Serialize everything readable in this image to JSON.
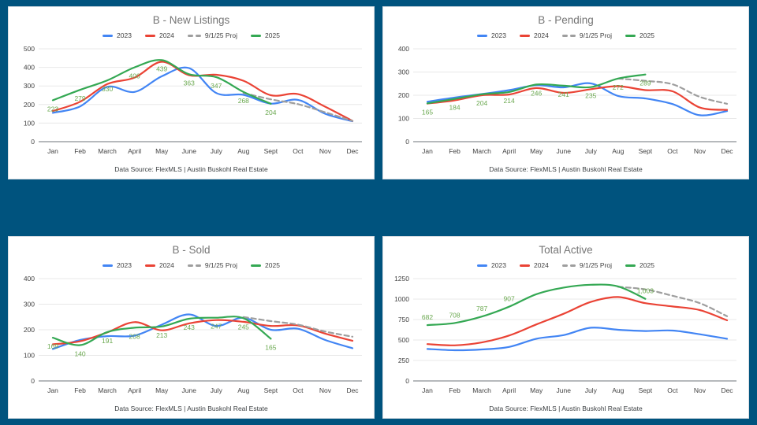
{
  "page": {
    "background_color": "#00537E",
    "card_color": "#FFFFFF",
    "title_color": "#757575",
    "axis_text_color": "#424242",
    "grid_color": "#E8E8E8",
    "data_label_color": "#6AA84F"
  },
  "footer_text": "Data Source: FlexMLS | Austin Buskohl Real Estate",
  "legend": [
    {
      "label": "2023",
      "color": "#4285F4",
      "style": "solid"
    },
    {
      "label": "2024",
      "color": "#EA4335",
      "style": "solid"
    },
    {
      "label": "9/1/25 Proj",
      "color": "#9E9E9E",
      "style": "dashed"
    },
    {
      "label": "2025",
      "color": "#34A853",
      "style": "solid"
    }
  ],
  "chart_data": [
    {
      "type": "line",
      "title": "B - New Listings",
      "ylim": [
        0,
        500
      ],
      "yticks": [
        0,
        100,
        200,
        300,
        400,
        500
      ],
      "grid": true,
      "legend_position": "top",
      "categories": [
        "Jan",
        "Feb",
        "March",
        "April",
        "May",
        "June",
        "July",
        "Aug",
        "Sept",
        "Oct",
        "Nov",
        "Dec"
      ],
      "series": [
        {
          "name": "2023",
          "color": "#4285F4",
          "dash": false,
          "values": [
            155,
            190,
            295,
            268,
            352,
            396,
            262,
            252,
            205,
            225,
            150,
            110
          ]
        },
        {
          "name": "2024",
          "color": "#EA4335",
          "dash": false,
          "values": [
            165,
            215,
            310,
            345,
            430,
            358,
            360,
            328,
            250,
            256,
            188,
            112
          ]
        },
        {
          "name": "9/1/25 Proj",
          "color": "#9E9E9E",
          "dash": true,
          "values": [
            null,
            null,
            null,
            null,
            null,
            null,
            null,
            262,
            228,
            202,
            158,
            112
          ]
        },
        {
          "name": "2025",
          "color": "#34A853",
          "dash": false,
          "values": [
            223,
            279,
            330,
            400,
            439,
            363,
            347,
            268,
            204,
            null,
            null,
            null
          ],
          "point_labels": [
            "223",
            "279",
            "330",
            "400",
            "439",
            "363",
            "347",
            "268",
            "204",
            null,
            null,
            null
          ],
          "label_side": "below"
        }
      ]
    },
    {
      "type": "line",
      "title": "B - Pending",
      "ylim": [
        0,
        400
      ],
      "yticks": [
        0,
        100,
        200,
        300,
        400
      ],
      "grid": true,
      "legend_position": "top",
      "categories": [
        "Jan",
        "Feb",
        "March",
        "April",
        "May",
        "June",
        "July",
        "Aug",
        "Sept",
        "Oct",
        "Nov",
        "Dec"
      ],
      "series": [
        {
          "name": "2023",
          "color": "#4285F4",
          "dash": false,
          "values": [
            172,
            190,
            205,
            222,
            243,
            234,
            251,
            197,
            186,
            162,
            114,
            132
          ]
        },
        {
          "name": "2024",
          "color": "#EA4335",
          "dash": false,
          "values": [
            164,
            178,
            200,
            203,
            231,
            210,
            226,
            239,
            222,
            217,
            147,
            137
          ]
        },
        {
          "name": "9/1/25 Proj",
          "color": "#9E9E9E",
          "dash": true,
          "values": [
            null,
            null,
            null,
            null,
            null,
            null,
            null,
            272,
            262,
            247,
            193,
            163
          ]
        },
        {
          "name": "2025",
          "color": "#34A853",
          "dash": false,
          "values": [
            165,
            184,
            204,
            214,
            246,
            241,
            235,
            272,
            289,
            null,
            null,
            null
          ],
          "point_labels": [
            "165",
            "184",
            "204",
            "214",
            "246",
            "241",
            "235",
            "272",
            "289",
            null,
            null,
            null
          ],
          "label_side": "below"
        }
      ]
    },
    {
      "type": "line",
      "title": "B - Sold",
      "ylim": [
        0,
        400
      ],
      "yticks": [
        0,
        100,
        200,
        300,
        400
      ],
      "grid": true,
      "legend_position": "top",
      "categories": [
        "Jan",
        "Feb",
        "March",
        "April",
        "May",
        "June",
        "July",
        "Aug",
        "Sept",
        "Oct",
        "Nov",
        "Dec"
      ],
      "series": [
        {
          "name": "2023",
          "color": "#4285F4",
          "dash": false,
          "values": [
            125,
            160,
            175,
            177,
            220,
            260,
            215,
            247,
            200,
            204,
            160,
            128
          ]
        },
        {
          "name": "2024",
          "color": "#EA4335",
          "dash": false,
          "values": [
            143,
            155,
            190,
            230,
            198,
            225,
            238,
            231,
            215,
            217,
            185,
            157
          ]
        },
        {
          "name": "9/1/25 Proj",
          "color": "#9E9E9E",
          "dash": true,
          "values": [
            null,
            null,
            null,
            null,
            null,
            null,
            null,
            250,
            234,
            220,
            193,
            173
          ]
        },
        {
          "name": "2025",
          "color": "#34A853",
          "dash": false,
          "values": [
            169,
            140,
            191,
            208,
            213,
            243,
            247,
            245,
            165,
            null,
            null,
            null
          ],
          "point_labels": [
            "169",
            "140",
            "191",
            "208",
            "213",
            "243",
            "247",
            "245",
            "165",
            null,
            null,
            null
          ],
          "label_side": "below"
        }
      ]
    },
    {
      "type": "line",
      "title": "Total Active",
      "ylim": [
        0,
        1250
      ],
      "yticks": [
        0,
        250,
        500,
        750,
        1000,
        1250
      ],
      "grid": true,
      "legend_position": "top",
      "categories": [
        "Jan",
        "Feb",
        "March",
        "April",
        "May",
        "June",
        "July",
        "Aug",
        "Sept",
        "Oct",
        "Nov",
        "Dec"
      ],
      "series": [
        {
          "name": "2023",
          "color": "#4285F4",
          "dash": false,
          "values": [
            390,
            375,
            385,
            415,
            515,
            560,
            650,
            625,
            610,
            615,
            570,
            515
          ]
        },
        {
          "name": "2024",
          "color": "#EA4335",
          "dash": false,
          "values": [
            450,
            435,
            470,
            555,
            690,
            820,
            965,
            1025,
            950,
            910,
            865,
            740
          ]
        },
        {
          "name": "9/1/25 Proj",
          "color": "#9E9E9E",
          "dash": true,
          "values": [
            null,
            null,
            null,
            null,
            null,
            null,
            null,
            1150,
            1118,
            1040,
            950,
            790
          ]
        },
        {
          "name": "2025",
          "color": "#34A853",
          "dash": false,
          "values": [
            682,
            708,
            787,
            907,
            1060,
            1140,
            1175,
            1155,
            1003,
            null,
            null,
            null
          ],
          "point_labels": [
            "682",
            "708",
            "787",
            "907",
            null,
            null,
            null,
            null,
            "1,003",
            null,
            null,
            null
          ],
          "label_side": "above"
        }
      ]
    }
  ]
}
